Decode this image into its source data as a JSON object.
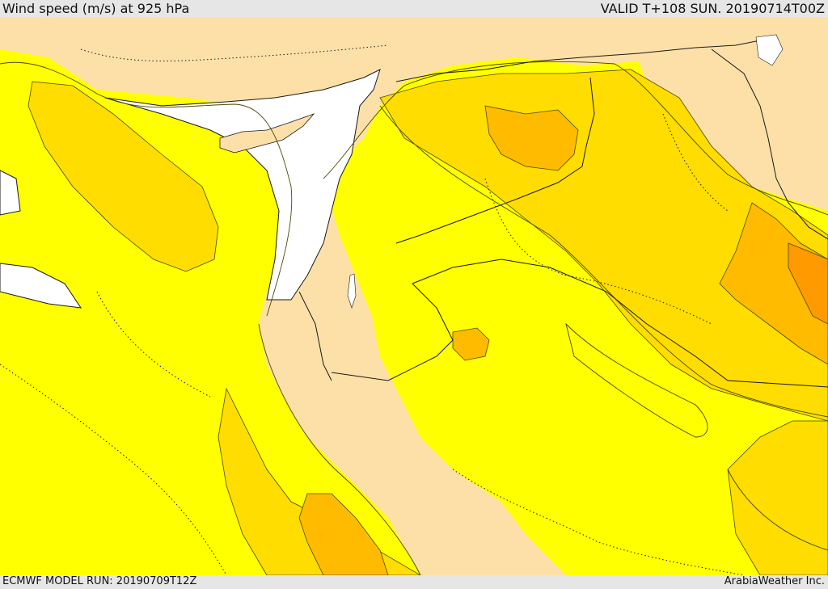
{
  "header": {
    "title": "Wind speed (m/s) at 925 hPa",
    "valid": "VALID T+108 SUN. 20190714T00Z"
  },
  "footer": {
    "model_run": "ECMWF MODEL RUN: 20190709T12Z",
    "credit": "ArabiaWeather Inc."
  },
  "map": {
    "colors": {
      "lowest": "#fde0a8",
      "low": "#ffff00",
      "medium": "#ffdd00",
      "high": "#ffbb00",
      "highest": "#ff9a00",
      "sea": "#ffffff",
      "contour": "#4a4a00",
      "border": "#1a1a1a"
    }
  }
}
